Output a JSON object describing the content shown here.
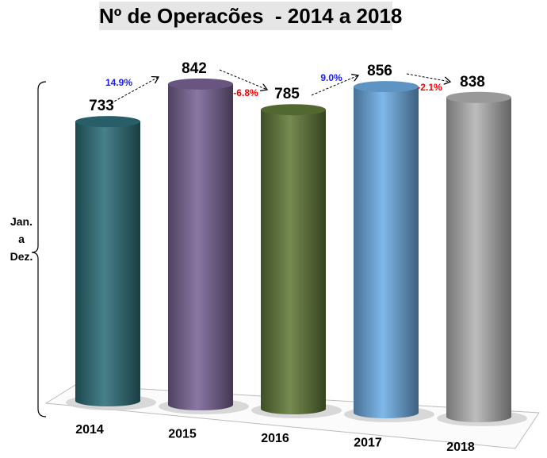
{
  "chart_data": {
    "type": "bar",
    "style": "3d-cylinder",
    "title": "Nº de Operacões  - 2014 a 2018",
    "ylabel": [
      "Jan.",
      "a",
      "Dez."
    ],
    "categories": [
      "2014",
      "2015",
      "2016",
      "2017",
      "2018"
    ],
    "values": [
      733,
      842,
      785,
      856,
      838
    ],
    "data_labels": [
      "733",
      "842",
      "785",
      "856",
      "838"
    ],
    "colors": [
      "#2e6f7a",
      "#7a6496",
      "#627a38",
      "#6eaee6",
      "#b4b4b4"
    ],
    "changes": [
      {
        "label": "14.9%",
        "color": "#1a1aff"
      },
      {
        "label": "-6.8%",
        "color": "#ff0000"
      },
      {
        "label": "9.0%",
        "color": "#1a1aff"
      },
      {
        "label": "-2.1%",
        "color": "#ff0000"
      }
    ],
    "grid": false
  }
}
